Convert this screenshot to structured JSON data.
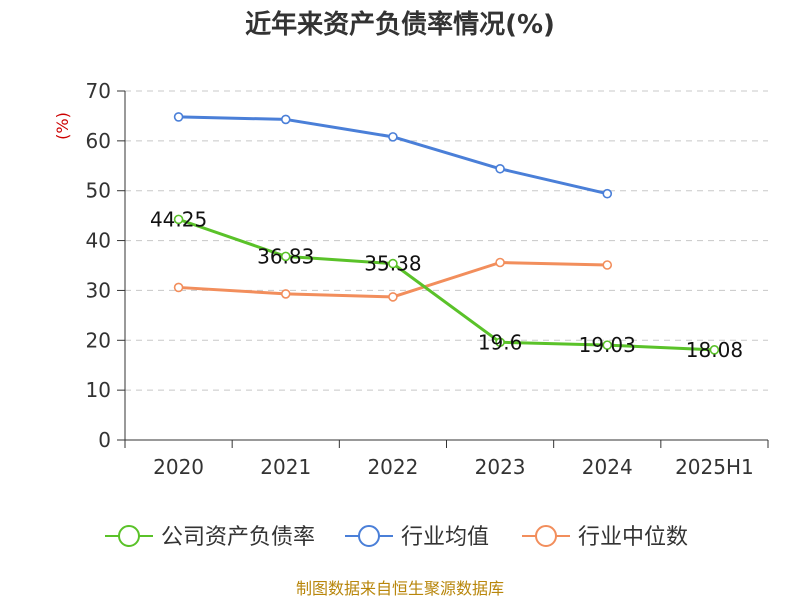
{
  "chart_data": {
    "type": "line",
    "title": "近年来资产负债率情况(%)",
    "ylabel": "(%)",
    "xlabel": "",
    "categories": [
      "2020",
      "2021",
      "2022",
      "2023",
      "2024",
      "2025H1"
    ],
    "ylim": [
      0,
      70
    ],
    "yticks": [
      0,
      10,
      20,
      30,
      40,
      50,
      60,
      70
    ],
    "grid": true,
    "legend_position": "bottom",
    "series": [
      {
        "name": "公司资产负债率",
        "color": "#5ac229",
        "values": [
          44.25,
          36.83,
          35.38,
          19.6,
          19.03,
          18.08
        ],
        "labels": [
          "44.25",
          "36.83",
          "35.38",
          "19.6",
          "19.03",
          "18.08"
        ]
      },
      {
        "name": "行业均值",
        "color": "#4a7fd8",
        "values": [
          64.8,
          64.3,
          60.8,
          54.4,
          49.4,
          null
        ]
      },
      {
        "name": "行业中位数",
        "color": "#f28e5c",
        "values": [
          30.6,
          29.3,
          28.7,
          35.6,
          35.1,
          null
        ]
      }
    ],
    "source": "制图数据来自恒生聚源数据库"
  }
}
